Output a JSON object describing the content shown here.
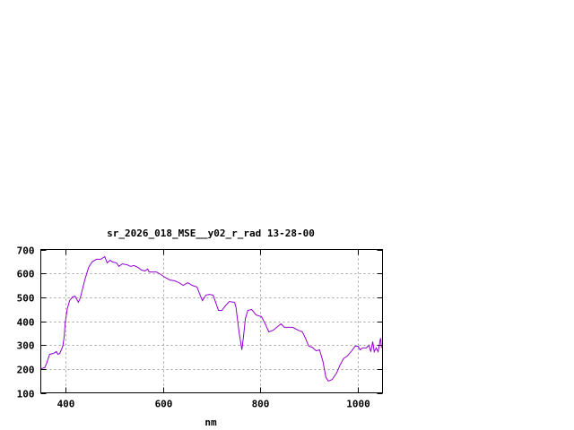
{
  "chart_data": {
    "type": "line",
    "title": "sr_2026_018_MSE__y02_r_rad 13-28-00",
    "xlabel": "nm",
    "ylabel": "",
    "xlim": [
      350,
      1050
    ],
    "ylim": [
      100,
      700
    ],
    "xticks": [
      400,
      600,
      800,
      1000
    ],
    "yticks": [
      100,
      200,
      300,
      400,
      500,
      600,
      700
    ],
    "grid": true,
    "line_color": "#9400d3",
    "series": [
      {
        "x": [
          350,
          358,
          362,
          368,
          376,
          382,
          385,
          389,
          395,
          398,
          400,
          404,
          409,
          415,
          420,
          424,
          427,
          431,
          440,
          448,
          455,
          464,
          473,
          481,
          486,
          492,
          497,
          505,
          510,
          517,
          527,
          534,
          541,
          549,
          556,
          563,
          569,
          572,
          587,
          596,
          607,
          615,
          624,
          633,
          642,
          651,
          660,
          670,
          675,
          681,
          688,
          695,
          703,
          708,
          714,
          721,
          728,
          736,
          747,
          750,
          756,
          762,
          765,
          769,
          774,
          782,
          791,
          802,
          809,
          817,
          826,
          835,
          842,
          849,
          866,
          877,
          886,
          892,
          899,
          906,
          914,
          921,
          928,
          934,
          939,
          947,
          956,
          963,
          970,
          978,
          987,
          994,
          1000,
          1004,
          1009,
          1017,
          1022,
          1026,
          1030,
          1033,
          1037,
          1041,
          1044,
          1046,
          1048
        ],
        "y": [
          201,
          205,
          224,
          261,
          265,
          273,
          261,
          265,
          295,
          336,
          393,
          449,
          486,
          501,
          505,
          490,
          479,
          498,
          572,
          625,
          648,
          659,
          659,
          670,
          644,
          655,
          648,
          644,
          629,
          640,
          636,
          629,
          633,
          625,
          614,
          610,
          618,
          606,
          606,
          595,
          580,
          572,
          569,
          561,
          550,
          561,
          550,
          543,
          516,
          486,
          509,
          512,
          509,
          479,
          445,
          445,
          464,
          482,
          479,
          456,
          355,
          280,
          333,
          411,
          445,
          449,
          426,
          419,
          392,
          355,
          362,
          377,
          389,
          374,
          374,
          362,
          355,
          329,
          295,
          291,
          276,
          280,
          231,
          164,
          149,
          156,
          183,
          216,
          243,
          254,
          276,
          295,
          295,
          280,
          288,
          288,
          299,
          272,
          314,
          272,
          288,
          272,
          306,
          329,
          288
        ]
      }
    ]
  }
}
